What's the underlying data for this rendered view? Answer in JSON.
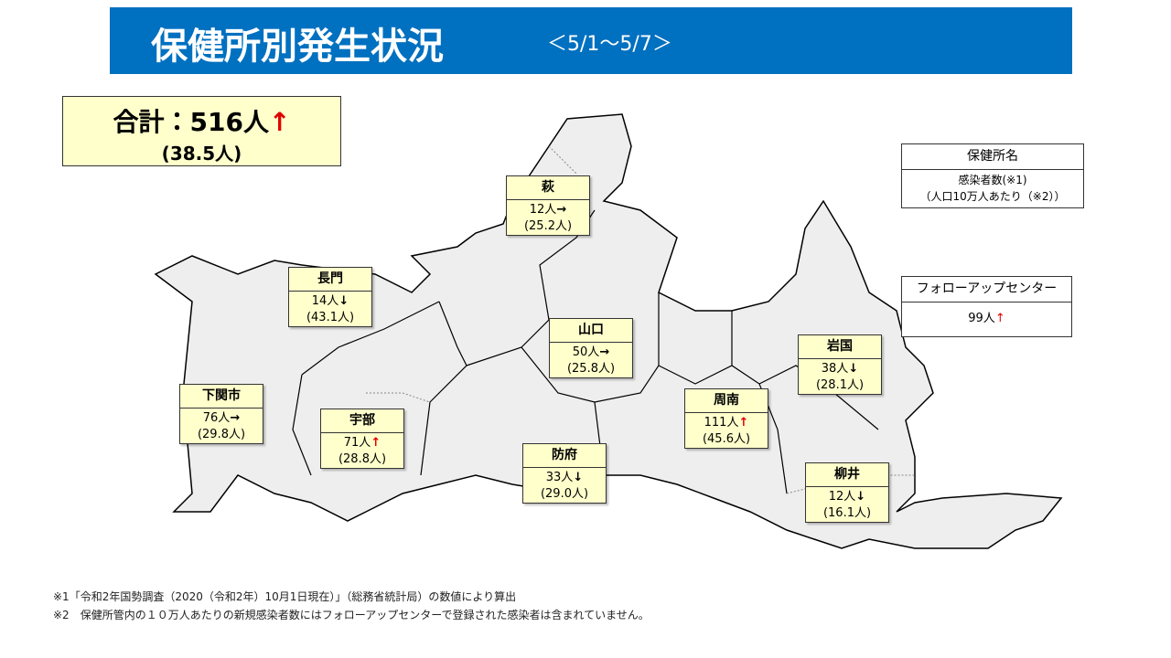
{
  "header": {
    "title": "保健所別発生状況",
    "period": "＜5/1～5/7＞"
  },
  "total": {
    "label": "合計：516人",
    "arrow": "↑",
    "arrow_color": "#e00000",
    "rate": "(38.5人)"
  },
  "legend": {
    "name": "保健所名",
    "line1": "感染者数(※1)",
    "line2": "（人口10万人あたり（※2））"
  },
  "followup": {
    "name": "フォローアップセンター",
    "count": "99人",
    "arrow": "↑",
    "arrow_color": "#e00000"
  },
  "regions": [
    {
      "name": "萩",
      "count": "12人",
      "arrow": "→",
      "arrow_color": "#000000",
      "rate": "(25.2人)"
    },
    {
      "name": "長門",
      "count": "14人",
      "arrow": "↓",
      "arrow_color": "#000000",
      "rate": "(43.1人)"
    },
    {
      "name": "山口",
      "count": "50人",
      "arrow": "→",
      "arrow_color": "#000000",
      "rate": "(25.8人)"
    },
    {
      "name": "下関市",
      "count": "76人",
      "arrow": "→",
      "arrow_color": "#000000",
      "rate": "(29.8人)"
    },
    {
      "name": "宇部",
      "count": "71人",
      "arrow": "↑",
      "arrow_color": "#e00000",
      "rate": "(28.8人)"
    },
    {
      "name": "防府",
      "count": "33人",
      "arrow": "↓",
      "arrow_color": "#000000",
      "rate": "(29.0人)"
    },
    {
      "name": "周南",
      "count": "111人",
      "arrow": "↑",
      "arrow_color": "#e00000",
      "rate": "(45.6人)"
    },
    {
      "name": "岩国",
      "count": "38人",
      "arrow": "↓",
      "arrow_color": "#000000",
      "rate": "(28.1人)"
    },
    {
      "name": "柳井",
      "count": "12人",
      "arrow": "↓",
      "arrow_color": "#000000",
      "rate": "(16.1人)"
    }
  ],
  "footnotes": [
    "※1「令和2年国勢調査（2020（令和2年）10月1日現在）」（総務省統計局）の数値により算出",
    "※2　保健所管内の１０万人あたりの新規感染者数にはフォローアップセンターで登録された感染者は含まれていません。"
  ]
}
